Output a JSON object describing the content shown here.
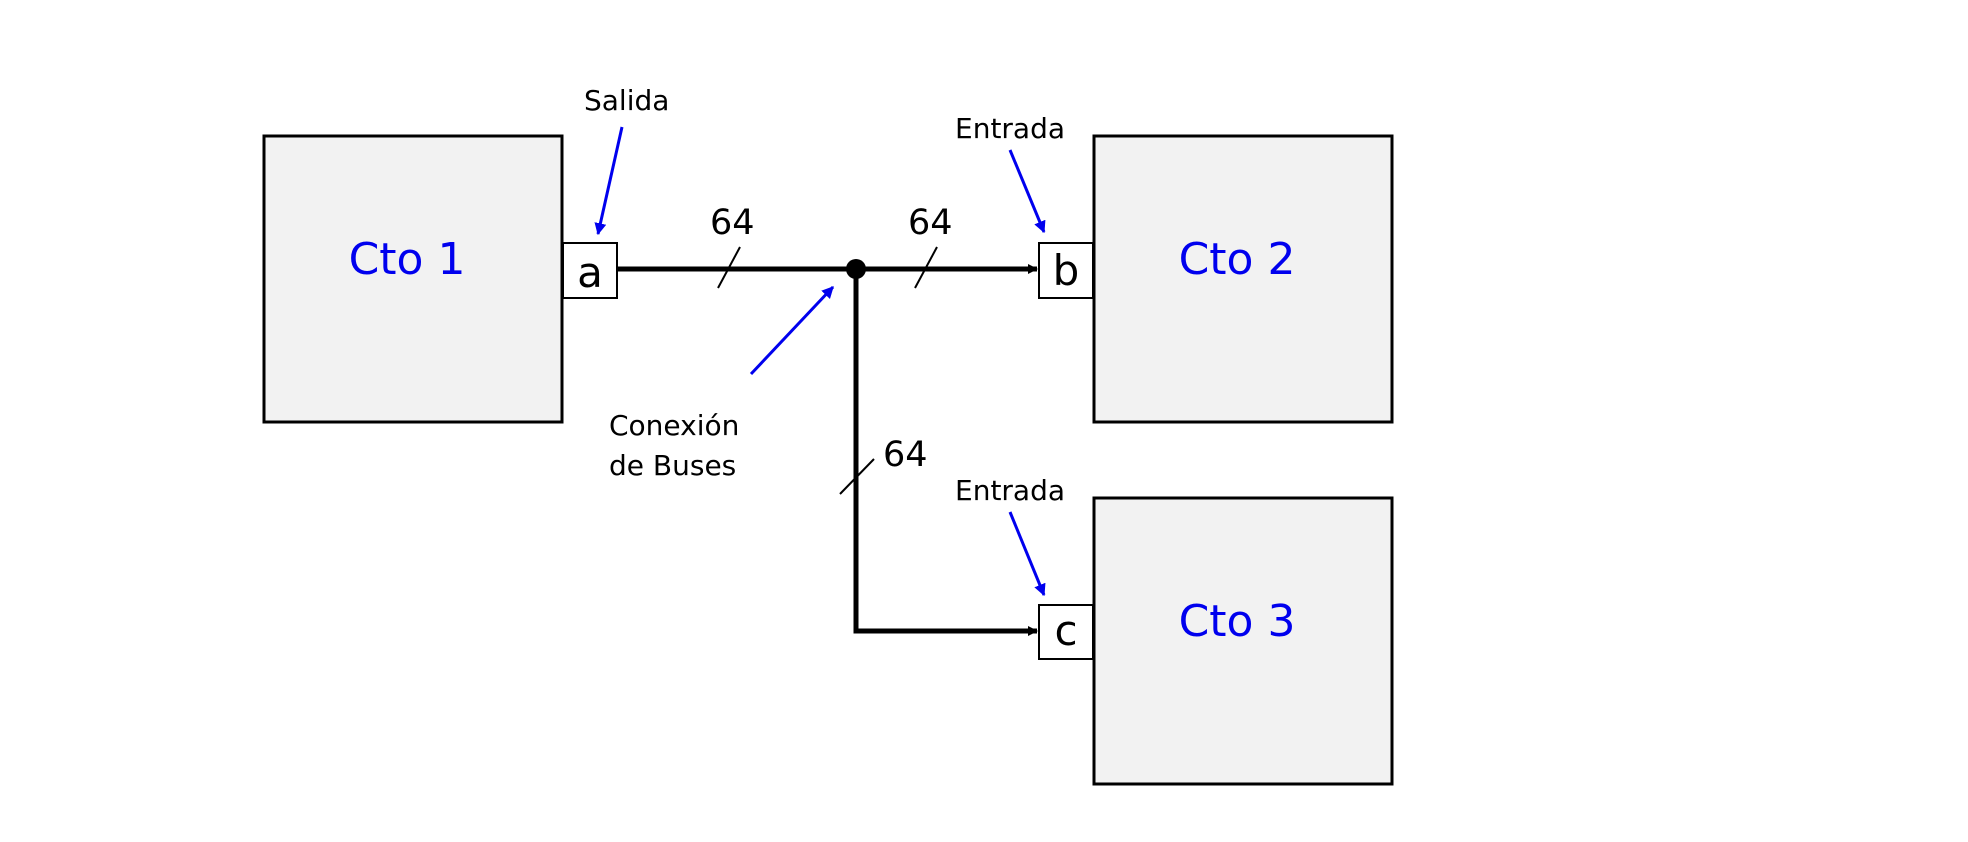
{
  "colors": {
    "box_fill": "#f2f2f2",
    "box_stroke": "#000000",
    "circuit_label": "#0000ee",
    "annotation_arrow": "#0000ee",
    "wire": "#000000"
  },
  "circuits": [
    {
      "id": "cto1",
      "label": "Cto 1"
    },
    {
      "id": "cto2",
      "label": "Cto 2"
    },
    {
      "id": "cto3",
      "label": "Cto 3"
    }
  ],
  "ports": [
    {
      "id": "a",
      "label": "a"
    },
    {
      "id": "b",
      "label": "b"
    },
    {
      "id": "c",
      "label": "c"
    }
  ],
  "bus_widths": [
    "64",
    "64",
    "64"
  ],
  "annotations": {
    "output_label": "Salida",
    "input_label_b": "Entrada",
    "input_label_c": "Entrada",
    "bus_connection_line1": "Conexión",
    "bus_connection_line2": "de Buses"
  }
}
